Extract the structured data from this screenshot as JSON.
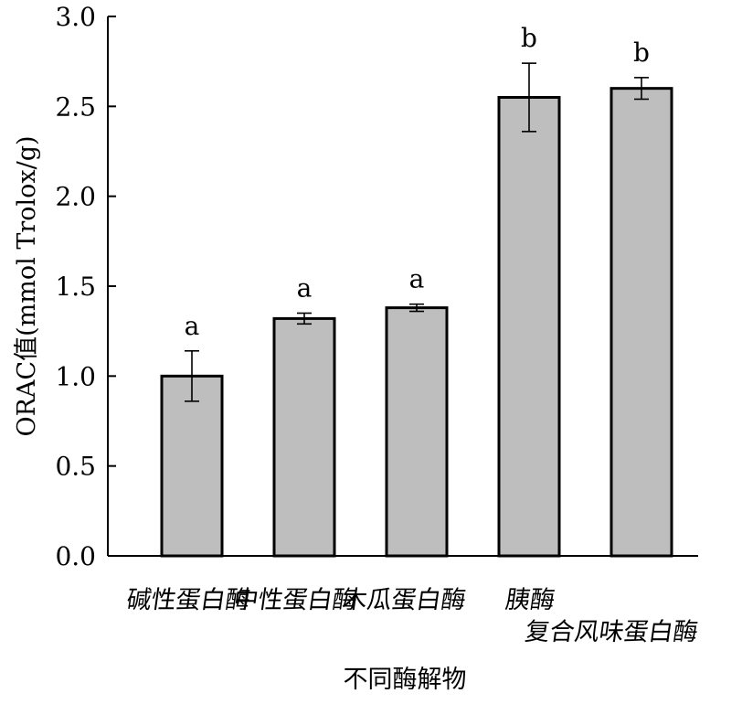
{
  "chart_data": {
    "type": "bar",
    "categories": [
      "碱性蛋白酶",
      "中性蛋白酶",
      "木瓜蛋白酶",
      "胰酶",
      "复合风味蛋白酶"
    ],
    "values": [
      1.0,
      1.32,
      1.38,
      2.55,
      2.6
    ],
    "errors": [
      0.14,
      0.03,
      0.02,
      0.19,
      0.06
    ],
    "significance": [
      "a",
      "a",
      "a",
      "b",
      "b"
    ],
    "title": "",
    "xlabel": "不同酶解物",
    "ylabel": "ORAC值(mmol Trolox/g)",
    "ylim": [
      0,
      3.0
    ],
    "yticks": [
      "0.0",
      "0.5",
      "1.0",
      "1.5",
      "2.0",
      "2.5",
      "3.0"
    ],
    "bar_color": "#bebebe",
    "grid": false,
    "legend": "none"
  }
}
